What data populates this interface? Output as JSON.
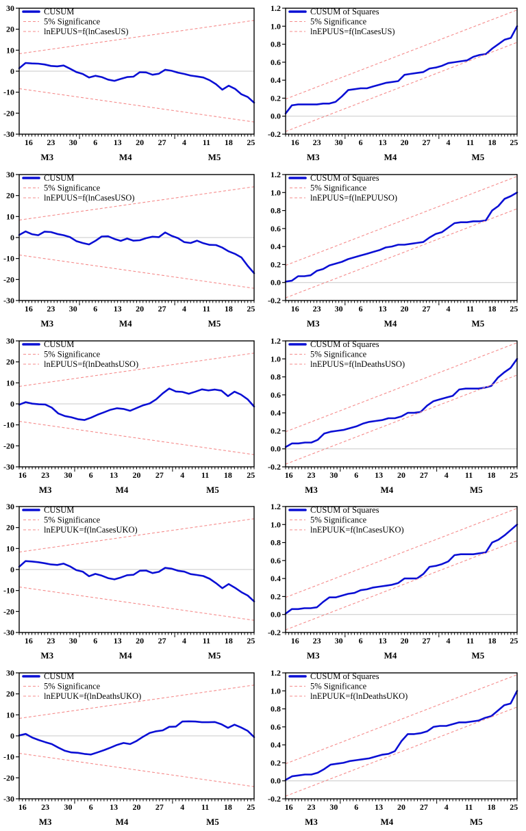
{
  "figure": {
    "description": "CUSUM and CUSUM of Squares stability test charts",
    "colors": {
      "main_line": "#0a0fd4",
      "significance_line": "#f58a8a",
      "zero_line": "#c8c8c8",
      "frame": "#000000",
      "background": "#ffffff"
    }
  },
  "axis_presets": {
    "cusum_y": {
      "ylim": [
        -30,
        30
      ],
      "ytick_vals": [
        30,
        20,
        10,
        0,
        -10,
        -20,
        -30
      ],
      "ytick_labels": [
        "30",
        "20",
        "10",
        "0",
        "-10",
        "-20",
        "-30"
      ]
    },
    "squares_y": {
      "ylim": [
        -0.2,
        1.2
      ],
      "ytick_vals": [
        1.2,
        1.0,
        0.8,
        0.6,
        0.4,
        0.2,
        0.0,
        -0.2
      ],
      "ytick_labels": [
        "1.2",
        "1.0",
        "0.8",
        "0.6",
        "0.4",
        "0.2",
        "0.0",
        "-0.2"
      ]
    },
    "x_a": {
      "xlim": [
        0,
        74
      ],
      "xtick_vals": [
        3,
        10,
        17,
        24,
        31,
        38,
        45,
        52,
        59,
        66,
        73
      ],
      "xtick_labels": [
        "16",
        "23",
        "30",
        "6",
        "13",
        "20",
        "27",
        "4",
        "11",
        "18",
        "25"
      ],
      "month_boundaries": [
        19,
        49
      ],
      "month_labels": [
        {
          "v": 8.8,
          "l": "M3"
        },
        {
          "v": 33.5,
          "l": "M4"
        },
        {
          "v": 61.5,
          "l": "M5"
        }
      ]
    },
    "x_b": {
      "xlim": [
        0,
        72
      ],
      "xtick_vals": [
        1,
        8,
        15,
        22,
        29,
        36,
        43,
        50,
        57,
        64,
        71
      ],
      "xtick_labels": [
        "16",
        "23",
        "30",
        "6",
        "13",
        "20",
        "27",
        "4",
        "11",
        "18",
        "25"
      ],
      "month_boundaries": [
        17,
        47
      ],
      "month_labels": [
        {
          "v": 8.0,
          "l": "M3"
        },
        {
          "v": 31.5,
          "l": "M4"
        },
        {
          "v": 59.3,
          "l": "M5"
        }
      ]
    }
  },
  "chart_data": [
    {
      "type": "line",
      "name": "cusum-lnEPUUS-lnCasesUS",
      "y_preset": "cusum_y",
      "x_preset": "x_a",
      "legend": [
        {
          "label": "CUSUM",
          "style": "solid-blue"
        },
        {
          "label": "5% Significance",
          "style": "dashed-red"
        },
        {
          "label": "lnEPUUS=f(lnCasesUS)",
          "style": "dashed-red"
        }
      ],
      "series": [
        {
          "name": "CUSUM",
          "style": "solid-blue",
          "x0": 0,
          "dx": 2,
          "y": [
            1.4,
            3.9,
            3.7,
            3.6,
            3.2,
            2.5,
            2.3,
            2.7,
            1.2,
            -0.4,
            -1.3,
            -3.0,
            -2.2,
            -2.8,
            -4.0,
            -4.6,
            -3.7,
            -2.8,
            -2.6,
            -0.5,
            -0.6,
            -1.7,
            -1.2,
            0.7,
            0.2,
            -0.7,
            -1.3,
            -2.1,
            -2.5,
            -3.0,
            -4.3,
            -6.2,
            -8.8,
            -6.9,
            -8.4,
            -11.0,
            -12.3,
            -15.0
          ]
        },
        {
          "name": "5% Significance upper",
          "style": "dashed-red",
          "x": [
            0,
            74
          ],
          "y": [
            8.3,
            24.2
          ]
        },
        {
          "name": "5% Significance lower",
          "style": "dashed-red",
          "x": [
            0,
            74
          ],
          "y": [
            -8.3,
            -24.2
          ]
        }
      ]
    },
    {
      "type": "line",
      "name": "cusumsq-lnEPUUS-lnCasesUS",
      "y_preset": "squares_y",
      "x_preset": "x_a",
      "legend": [
        {
          "label": "CUSUM of Squares",
          "style": "solid-blue"
        },
        {
          "label": "5% Significance",
          "style": "dashed-red"
        },
        {
          "label": "lnEPUUS=f(lnCasesUS)",
          "style": "dashed-red"
        }
      ],
      "series": [
        {
          "name": "CUSUM of Squares",
          "style": "solid-blue",
          "x0": 0,
          "dx": 2,
          "y": [
            0.03,
            0.12,
            0.13,
            0.13,
            0.13,
            0.13,
            0.14,
            0.14,
            0.16,
            0.22,
            0.29,
            0.3,
            0.31,
            0.31,
            0.33,
            0.35,
            0.37,
            0.38,
            0.39,
            0.46,
            0.47,
            0.48,
            0.49,
            0.53,
            0.54,
            0.56,
            0.59,
            0.6,
            0.61,
            0.62,
            0.66,
            0.68,
            0.69,
            0.75,
            0.8,
            0.85,
            0.87,
            1.0
          ]
        },
        {
          "name": "5% Significance upper",
          "style": "dashed-red",
          "x": [
            0,
            74
          ],
          "y": [
            0.19,
            1.18
          ]
        },
        {
          "name": "5% Significance lower",
          "style": "dashed-red",
          "x": [
            0,
            74
          ],
          "y": [
            -0.17,
            0.82
          ]
        }
      ]
    },
    {
      "type": "line",
      "name": "cusum-lnEPUUS-lnCasesUSO",
      "y_preset": "cusum_y",
      "x_preset": "x_a",
      "legend": [
        {
          "label": "CUSUM",
          "style": "solid-blue"
        },
        {
          "label": "5% Significance",
          "style": "dashed-red"
        },
        {
          "label": "lnEPUUS=f(lnCasesUSO)",
          "style": "dashed-red"
        }
      ],
      "series": [
        {
          "name": "CUSUM",
          "style": "solid-blue",
          "x0": 0,
          "dx": 2,
          "y": [
            1.2,
            2.9,
            1.6,
            1.1,
            2.8,
            2.6,
            1.7,
            1.1,
            0.2,
            -1.7,
            -2.6,
            -3.3,
            -1.6,
            0.5,
            0.6,
            -0.7,
            -1.6,
            -0.5,
            -1.5,
            -1.3,
            -0.3,
            0.4,
            0.2,
            2.4,
            0.8,
            -0.3,
            -2.2,
            -2.6,
            -1.5,
            -2.7,
            -3.5,
            -3.6,
            -4.8,
            -6.6,
            -7.8,
            -9.5,
            -13.5,
            -17.0
          ]
        },
        {
          "name": "5% Significance upper",
          "style": "dashed-red",
          "x": [
            0,
            74
          ],
          "y": [
            8.3,
            24.2
          ]
        },
        {
          "name": "5% Significance lower",
          "style": "dashed-red",
          "x": [
            0,
            74
          ],
          "y": [
            -8.3,
            -24.2
          ]
        }
      ]
    },
    {
      "type": "line",
      "name": "cusumsq-lnEPUUS-lnEPUUSO",
      "y_preset": "squares_y",
      "x_preset": "x_a",
      "legend": [
        {
          "label": "CUSUM of Squares",
          "style": "solid-blue"
        },
        {
          "label": "5% Significance",
          "style": "dashed-red"
        },
        {
          "label": "lnEPUUS=f(lnEPUUSO)",
          "style": "dashed-red"
        }
      ],
      "series": [
        {
          "name": "CUSUM of Squares",
          "style": "solid-blue",
          "x0": 0,
          "dx": 2,
          "y": [
            0.01,
            0.02,
            0.07,
            0.07,
            0.08,
            0.13,
            0.15,
            0.19,
            0.21,
            0.23,
            0.26,
            0.28,
            0.3,
            0.32,
            0.34,
            0.36,
            0.39,
            0.4,
            0.42,
            0.42,
            0.43,
            0.44,
            0.45,
            0.5,
            0.54,
            0.56,
            0.61,
            0.66,
            0.67,
            0.67,
            0.68,
            0.68,
            0.69,
            0.8,
            0.85,
            0.93,
            0.96,
            1.0
          ]
        },
        {
          "name": "5% Significance upper",
          "style": "dashed-red",
          "x": [
            0,
            74
          ],
          "y": [
            0.19,
            1.18
          ]
        },
        {
          "name": "5% Significance lower",
          "style": "dashed-red",
          "x": [
            0,
            74
          ],
          "y": [
            -0.17,
            0.82
          ]
        }
      ]
    },
    {
      "type": "line",
      "name": "cusum-lnEPUUS-lnDeathsUSO",
      "y_preset": "cusum_y",
      "x_preset": "x_b",
      "legend": [
        {
          "label": "CUSUM",
          "style": "solid-blue"
        },
        {
          "label": "5% Significance",
          "style": "dashed-red"
        },
        {
          "label": "lnEPUUS=f(lnDeathsUSO)",
          "style": "dashed-red"
        }
      ],
      "series": [
        {
          "name": "CUSUM",
          "style": "solid-blue",
          "x0": 0,
          "dx": 2,
          "y": [
            -0.4,
            0.8,
            0.1,
            -0.2,
            -0.3,
            -1.8,
            -4.6,
            -5.8,
            -6.4,
            -7.3,
            -7.7,
            -6.6,
            -5.2,
            -4.0,
            -2.8,
            -2.1,
            -2.4,
            -3.3,
            -2.0,
            -0.7,
            0.2,
            2.2,
            5.0,
            7.3,
            5.9,
            5.7,
            4.8,
            5.8,
            6.9,
            6.4,
            6.8,
            6.3,
            3.7,
            5.8,
            4.4,
            2.2,
            -1.3
          ]
        },
        {
          "name": "5% Significance upper",
          "style": "dashed-red",
          "x": [
            0,
            72
          ],
          "y": [
            8.3,
            24.2
          ]
        },
        {
          "name": "5% Significance lower",
          "style": "dashed-red",
          "x": [
            0,
            72
          ],
          "y": [
            -8.3,
            -24.2
          ]
        }
      ]
    },
    {
      "type": "line",
      "name": "cusumsq-lnEPUUS-lnDeathsUSO",
      "y_preset": "squares_y",
      "x_preset": "x_b",
      "legend": [
        {
          "label": "CUSUM of Squares",
          "style": "solid-blue"
        },
        {
          "label": "5% Significance",
          "style": "dashed-red"
        },
        {
          "label": "lnEPUUS=f(lnDeathsUSO)",
          "style": "dashed-red"
        }
      ],
      "series": [
        {
          "name": "CUSUM of Squares",
          "style": "solid-blue",
          "x0": 0,
          "dx": 2,
          "y": [
            0.02,
            0.06,
            0.06,
            0.07,
            0.07,
            0.1,
            0.17,
            0.19,
            0.2,
            0.21,
            0.23,
            0.25,
            0.28,
            0.3,
            0.31,
            0.32,
            0.34,
            0.34,
            0.36,
            0.4,
            0.4,
            0.41,
            0.48,
            0.53,
            0.55,
            0.57,
            0.59,
            0.66,
            0.67,
            0.67,
            0.67,
            0.68,
            0.7,
            0.79,
            0.85,
            0.9,
            1.0
          ]
        },
        {
          "name": "5% Significance upper",
          "style": "dashed-red",
          "x": [
            0,
            72
          ],
          "y": [
            0.19,
            1.18
          ]
        },
        {
          "name": "5% Significance lower",
          "style": "dashed-red",
          "x": [
            0,
            72
          ],
          "y": [
            -0.17,
            0.82
          ]
        }
      ]
    },
    {
      "type": "line",
      "name": "cusum-lnEPUUK-lnCasesUKO",
      "y_preset": "cusum_y",
      "x_preset": "x_a",
      "legend": [
        {
          "label": "CUSUM",
          "style": "solid-blue"
        },
        {
          "label": "5% Significance",
          "style": "dashed-red"
        },
        {
          "label": "lnEPUUK=f(lnCasesUKO)",
          "style": "dashed-red"
        }
      ],
      "series": [
        {
          "name": "CUSUM",
          "style": "solid-blue",
          "x0": 0,
          "dx": 2,
          "y": [
            1.3,
            4.0,
            3.8,
            3.5,
            3.0,
            2.4,
            2.2,
            2.8,
            1.5,
            -0.3,
            -1.0,
            -3.2,
            -2.1,
            -2.9,
            -4.1,
            -4.7,
            -3.8,
            -2.7,
            -2.5,
            -0.6,
            -0.5,
            -1.7,
            -1.1,
            0.8,
            0.4,
            -0.6,
            -1.0,
            -2.2,
            -2.6,
            -3.1,
            -4.4,
            -6.5,
            -8.9,
            -6.9,
            -8.7,
            -10.8,
            -12.4,
            -15.2
          ]
        },
        {
          "name": "5% Significance upper",
          "style": "dashed-red",
          "x": [
            0,
            74
          ],
          "y": [
            8.3,
            24.2
          ]
        },
        {
          "name": "5% Significance lower",
          "style": "dashed-red",
          "x": [
            0,
            74
          ],
          "y": [
            -8.3,
            -24.2
          ]
        }
      ]
    },
    {
      "type": "line",
      "name": "cusumsq-lnEPUUK-lnCasesUKO",
      "y_preset": "squares_y",
      "x_preset": "x_a",
      "legend": [
        {
          "label": "CUSUM of Squares",
          "style": "solid-blue"
        },
        {
          "label": "5% Significance",
          "style": "dashed-red"
        },
        {
          "label": "lnEPUUK=f(lnCasesUKO)",
          "style": "dashed-red"
        }
      ],
      "series": [
        {
          "name": "CUSUM of Squares",
          "style": "solid-blue",
          "x0": 0,
          "dx": 2,
          "y": [
            0.01,
            0.06,
            0.06,
            0.07,
            0.07,
            0.08,
            0.14,
            0.19,
            0.19,
            0.21,
            0.23,
            0.24,
            0.27,
            0.28,
            0.3,
            0.31,
            0.32,
            0.33,
            0.35,
            0.4,
            0.4,
            0.4,
            0.45,
            0.53,
            0.54,
            0.56,
            0.59,
            0.66,
            0.67,
            0.67,
            0.67,
            0.68,
            0.69,
            0.8,
            0.83,
            0.88,
            0.94,
            1.0
          ]
        },
        {
          "name": "5% Significance upper",
          "style": "dashed-red",
          "x": [
            0,
            74
          ],
          "y": [
            0.19,
            1.18
          ]
        },
        {
          "name": "5% Significance lower",
          "style": "dashed-red",
          "x": [
            0,
            74
          ],
          "y": [
            -0.17,
            0.82
          ]
        }
      ]
    },
    {
      "type": "line",
      "name": "cusum-lnEPUUK-lnDeathsUKO",
      "y_preset": "cusum_y",
      "x_preset": "x_b",
      "legend": [
        {
          "label": "CUSUM",
          "style": "solid-blue"
        },
        {
          "label": "5% Significance",
          "style": "dashed-red"
        },
        {
          "label": "lnEPUUK=f(lnDeathsUKO)",
          "style": "dashed-red"
        }
      ],
      "series": [
        {
          "name": "CUSUM",
          "style": "solid-blue",
          "x0": 0,
          "dx": 2,
          "y": [
            0.2,
            0.9,
            -0.8,
            -2.0,
            -3.0,
            -3.9,
            -5.6,
            -7.1,
            -7.9,
            -8.1,
            -8.6,
            -8.9,
            -7.9,
            -6.8,
            -5.6,
            -4.3,
            -3.4,
            -3.9,
            -2.4,
            -0.4,
            1.4,
            2.2,
            2.6,
            4.3,
            4.4,
            6.8,
            6.9,
            6.8,
            6.5,
            6.5,
            6.6,
            5.5,
            3.8,
            5.3,
            4.0,
            2.4,
            -0.6
          ]
        },
        {
          "name": "5% Significance upper",
          "style": "dashed-red",
          "x": [
            0,
            72
          ],
          "y": [
            8.3,
            24.2
          ]
        },
        {
          "name": "5% Significance lower",
          "style": "dashed-red",
          "x": [
            0,
            72
          ],
          "y": [
            -8.3,
            -24.2
          ]
        }
      ]
    },
    {
      "type": "line",
      "name": "cusumsq-lnEPUUK-lnDeathsUKO",
      "y_preset": "squares_y",
      "x_preset": "x_b",
      "legend": [
        {
          "label": "CUSUM of Squares",
          "style": "solid-blue"
        },
        {
          "label": "5% Significance",
          "style": "dashed-red"
        },
        {
          "label": "lnEPUUK=f(lnDeathsUKO)",
          "style": "dashed-red"
        }
      ],
      "series": [
        {
          "name": "CUSUM of Squares",
          "style": "solid-blue",
          "x0": 0,
          "dx": 2,
          "y": [
            0.01,
            0.05,
            0.06,
            0.07,
            0.07,
            0.09,
            0.13,
            0.18,
            0.19,
            0.2,
            0.22,
            0.23,
            0.24,
            0.25,
            0.27,
            0.29,
            0.3,
            0.33,
            0.44,
            0.52,
            0.52,
            0.53,
            0.55,
            0.6,
            0.61,
            0.61,
            0.63,
            0.65,
            0.65,
            0.66,
            0.67,
            0.7,
            0.72,
            0.78,
            0.84,
            0.86,
            1.0
          ]
        },
        {
          "name": "5% Significance upper",
          "style": "dashed-red",
          "x": [
            0,
            72
          ],
          "y": [
            0.19,
            1.18
          ]
        },
        {
          "name": "5% Significance lower",
          "style": "dashed-red",
          "x": [
            0,
            72
          ],
          "y": [
            -0.17,
            0.82
          ]
        }
      ]
    }
  ]
}
